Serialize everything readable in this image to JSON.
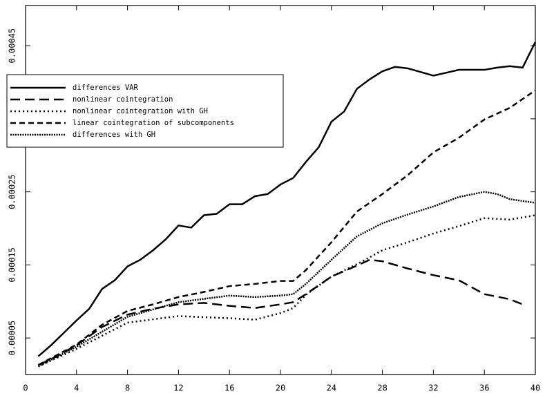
{
  "chart_data": {
    "type": "line",
    "xlim": [
      0,
      40
    ],
    "ylim": [
      0,
      0.000505
    ],
    "xticks": [
      0,
      4,
      8,
      12,
      16,
      20,
      24,
      28,
      32,
      36,
      40
    ],
    "yticks": [
      5e-05,
      0.00015,
      0.00025,
      0.00035,
      0.00045
    ],
    "legend": "upper left",
    "series": [
      {
        "name": "differences VAR",
        "color": "#000000",
        "dash": "solid",
        "x": [
          1,
          2,
          3,
          4,
          5,
          6,
          7,
          8,
          9,
          10,
          11,
          12,
          13,
          14,
          15,
          16,
          17,
          18,
          19,
          20,
          21,
          22,
          23,
          24,
          25,
          26,
          27,
          28,
          29,
          30,
          31,
          32,
          33,
          34,
          35,
          36,
          37,
          38,
          39,
          40
        ],
        "values": [
          2.5e-05,
          4e-05,
          5.7e-05,
          7.4e-05,
          9e-05,
          0.000117,
          0.000129,
          0.000148,
          0.000157,
          0.00017,
          0.000185,
          0.000204,
          0.000201,
          0.000218,
          0.00022,
          0.000233,
          0.000233,
          0.000244,
          0.000247,
          0.00026,
          0.000269,
          0.000291,
          0.000311,
          0.000346,
          0.00036,
          0.000391,
          0.000404,
          0.000415,
          0.000421,
          0.000419,
          0.000414,
          0.000409,
          0.000413,
          0.000417,
          0.000417,
          0.000417,
          0.00042,
          0.000422,
          0.00042,
          0.000455
        ]
      },
      {
        "name": "nonlinear cointegration",
        "color": "#000000",
        "dash": "long",
        "x": [
          1,
          2,
          4,
          6,
          8,
          10,
          12,
          14,
          16,
          18,
          20,
          21,
          22,
          24,
          26,
          27,
          28,
          30,
          32,
          34,
          36,
          38,
          39
        ],
        "values": [
          1.3e-05,
          2.1e-05,
          4e-05,
          6.5e-05,
          8.2e-05,
          9e-05,
          9.6e-05,
          9.8e-05,
          9.4e-05,
          9.1e-05,
          9.6e-05,
          9.9e-05,
          0.00011,
          0.000134,
          0.000149,
          0.000157,
          0.000155,
          0.000145,
          0.000136,
          0.000129,
          0.00011,
          0.000103,
          9.6e-05
        ]
      },
      {
        "name": "nonlinear cointegration with GH",
        "color": "#000000",
        "dash": "dot",
        "x": [
          1,
          4,
          8,
          12,
          16,
          18,
          20,
          21,
          22,
          24,
          26,
          28,
          30,
          32,
          34,
          36,
          38,
          40
        ],
        "values": [
          1.1e-05,
          3.5e-05,
          7.1e-05,
          8e-05,
          7.7e-05,
          7.5e-05,
          8.4e-05,
          9.1e-05,
          0.000109,
          0.000134,
          0.000151,
          0.00017,
          0.000181,
          0.000193,
          0.000203,
          0.000214,
          0.000212,
          0.000218
        ]
      },
      {
        "name": "linear cointegration of subcomponents",
        "color": "#000000",
        "dash": "short",
        "x": [
          1,
          4,
          6,
          8,
          10,
          12,
          14,
          16,
          18,
          20,
          21,
          22,
          24,
          26,
          28,
          30,
          32,
          34,
          36,
          38,
          40
        ],
        "values": [
          1.3e-05,
          4.1e-05,
          6.8e-05,
          8.7e-05,
          9.6e-05,
          0.000106,
          0.000113,
          0.000121,
          0.000124,
          0.000128,
          0.000128,
          0.000143,
          0.000181,
          0.000223,
          0.000247,
          0.000273,
          0.000304,
          0.000324,
          0.000349,
          0.000365,
          0.000389
        ]
      },
      {
        "name": "differences with GH",
        "color": "#000000",
        "dash": "densedot",
        "x": [
          1,
          4,
          8,
          12,
          16,
          18,
          20,
          21,
          22,
          24,
          26,
          28,
          30,
          32,
          34,
          36,
          37,
          38,
          40
        ],
        "values": [
          1.1e-05,
          3.8e-05,
          7.9e-05,
          9.9e-05,
          0.000108,
          0.000106,
          0.000108,
          0.00011,
          0.000124,
          0.000157,
          0.000189,
          0.000207,
          0.000219,
          0.00023,
          0.000243,
          0.00025,
          0.000247,
          0.00024,
          0.000235
        ]
      }
    ]
  }
}
